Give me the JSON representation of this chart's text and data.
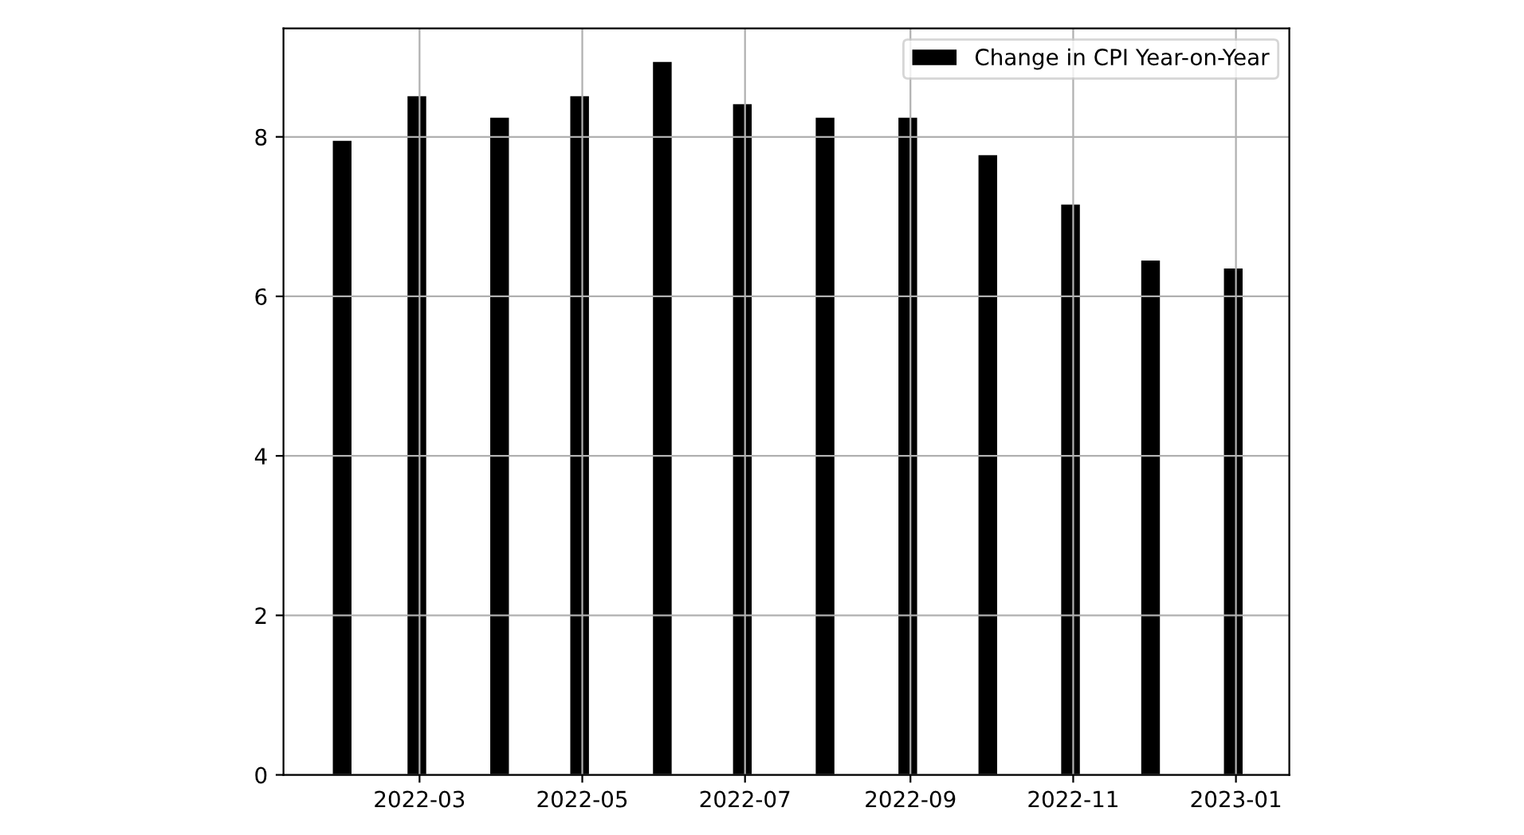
{
  "chart_data": {
    "type": "bar",
    "x": [
      "2022-01-31",
      "2022-02-28",
      "2022-03-31",
      "2022-04-30",
      "2022-05-31",
      "2022-06-30",
      "2022-07-31",
      "2022-08-31",
      "2022-09-30",
      "2022-10-31",
      "2022-11-30",
      "2022-12-31"
    ],
    "series": [
      {
        "name": "Change in CPI Year-on-Year",
        "color": "#000000",
        "values": [
          7.95,
          8.51,
          8.24,
          8.51,
          8.94,
          8.41,
          8.24,
          8.24,
          7.77,
          7.15,
          6.45,
          6.35
        ]
      }
    ],
    "xlim": [
      "2022-01-09",
      "2023-01-21"
    ],
    "xticks": [
      {
        "value": "2022-03-01",
        "label": "2022-03"
      },
      {
        "value": "2022-05-01",
        "label": "2022-05"
      },
      {
        "value": "2022-07-01",
        "label": "2022-07"
      },
      {
        "value": "2022-09-01",
        "label": "2022-09"
      },
      {
        "value": "2022-11-01",
        "label": "2022-11"
      },
      {
        "value": "2023-01-01",
        "label": "2023-01"
      }
    ],
    "ylim": [
      0,
      9.36
    ],
    "yticks": [
      0,
      2,
      4,
      6,
      8
    ],
    "grid": true,
    "legend": "top right"
  }
}
